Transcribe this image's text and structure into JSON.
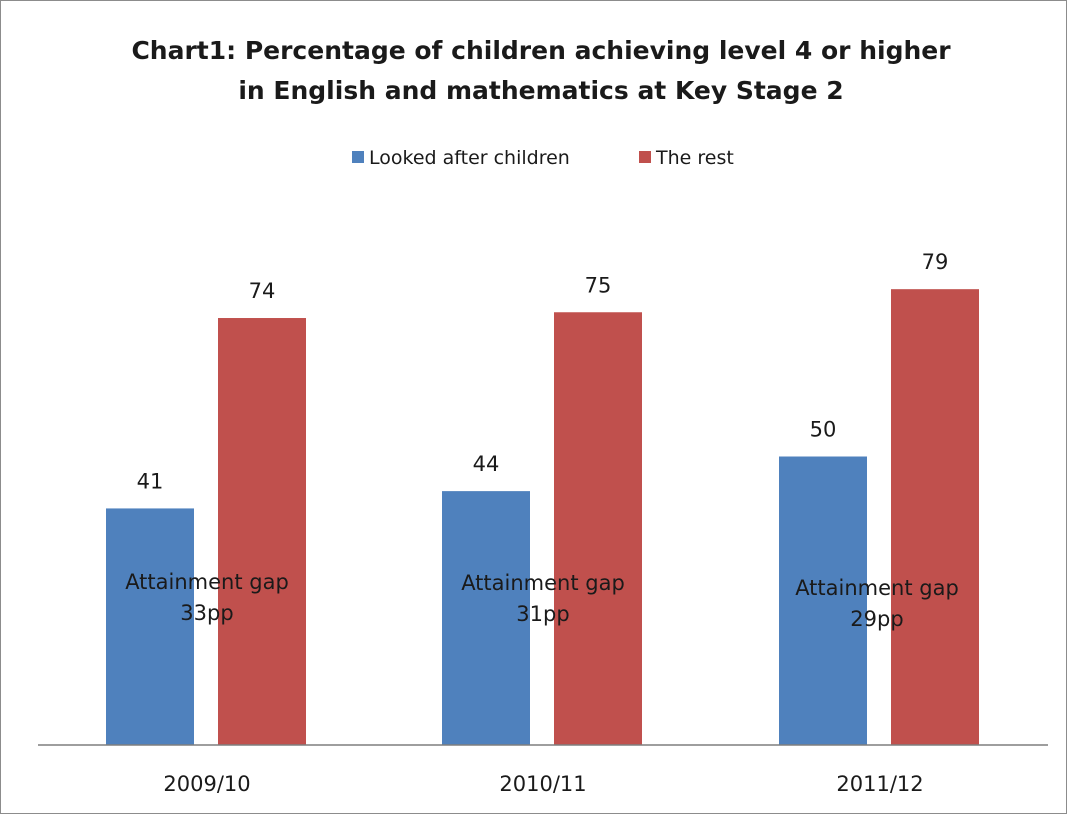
{
  "chart_data": {
    "type": "bar",
    "title_lines": [
      "Chart1: Percentage of children achieving level 4 or higher",
      "in English and mathematics at Key Stage 2"
    ],
    "categories": [
      "2009/10",
      "2010/11",
      "2011/12"
    ],
    "series": [
      {
        "name": "Looked after children",
        "color": "#4f81bd",
        "values": [
          41,
          44,
          50
        ]
      },
      {
        "name": "The rest",
        "color": "#c0504d",
        "values": [
          74,
          75,
          79
        ]
      }
    ],
    "annotations": [
      {
        "category": "2009/10",
        "line1": "Attainment gap",
        "line2": "33pp"
      },
      {
        "category": "2010/11",
        "line1": "Attainment gap",
        "line2": "31pp"
      },
      {
        "category": "2011/12",
        "line1": "Attainment gap",
        "line2": "29pp"
      }
    ],
    "legend_position": "top",
    "grid": false,
    "ylim": [
      0,
      100
    ],
    "y_axis_visible": false
  }
}
